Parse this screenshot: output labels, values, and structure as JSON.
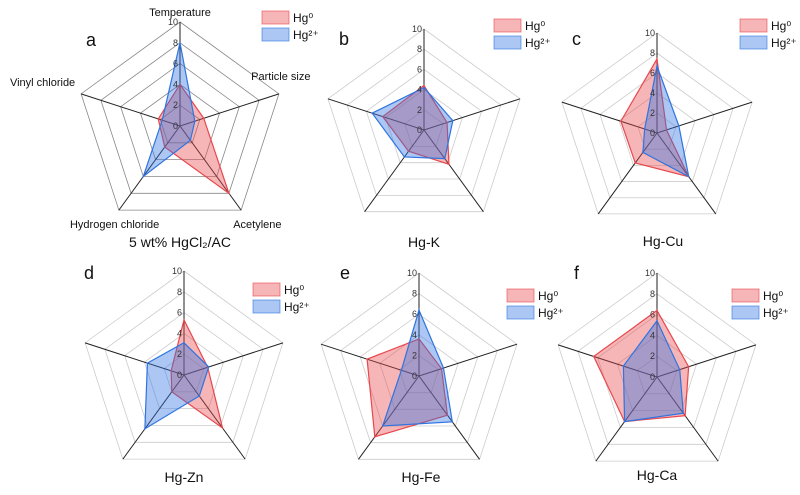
{
  "chart_data": [
    {
      "type": "radar",
      "panel": "a",
      "title": "5 wt% HgCl₂/AC",
      "axes": [
        "Temperature",
        "Particle size",
        "Acetylene",
        "Hydrogen chloride",
        "Vinyl chloride"
      ],
      "axis_labels_shown": true,
      "rlim": [
        0,
        10
      ],
      "ticks": [
        "0",
        "2",
        "4",
        "6",
        "8",
        "10"
      ],
      "legend": "top-right",
      "series": [
        {
          "name": "Hg⁰",
          "color": "#e8474c",
          "values": [
            4.0,
            2.4,
            8.0,
            2.5,
            2.2
          ]
        },
        {
          "name": "Hg²⁺",
          "color": "#2f74e0",
          "values": [
            8.0,
            1.5,
            1.7,
            6.0,
            1.8
          ]
        }
      ]
    },
    {
      "type": "radar",
      "panel": "b",
      "title": "Hg-K",
      "axes": [
        "Temperature",
        "Particle size",
        "Acetylene",
        "Hydrogen chloride",
        "Vinyl chloride"
      ],
      "axis_labels_shown": false,
      "rlim": [
        0,
        10
      ],
      "ticks": [
        "0",
        "2",
        "4",
        "6",
        "8",
        "10"
      ],
      "legend": "top-right",
      "series": [
        {
          "name": "Hg⁰",
          "color": "#e8474c",
          "values": [
            4.4,
            2.4,
            4.2,
            2.6,
            4.3
          ]
        },
        {
          "name": "Hg²⁺",
          "color": "#2f74e0",
          "values": [
            4.2,
            3.0,
            3.5,
            3.3,
            5.4
          ]
        }
      ]
    },
    {
      "type": "radar",
      "panel": "c",
      "title": "Hg-Cu",
      "axes": [
        "Temperature",
        "Particle size",
        "Acetylene",
        "Hydrogen chloride",
        "Vinyl chloride"
      ],
      "axis_labels_shown": false,
      "rlim": [
        0,
        10
      ],
      "ticks": [
        "0",
        "2",
        "4",
        "6",
        "8",
        "10"
      ],
      "legend": "top-right",
      "series": [
        {
          "name": "Hg⁰",
          "color": "#e8474c",
          "values": [
            7.4,
            1.0,
            5.4,
            3.7,
            3.8
          ]
        },
        {
          "name": "Hg²⁺",
          "color": "#2f74e0",
          "values": [
            6.7,
            2.3,
            5.4,
            2.4,
            1.3
          ]
        }
      ]
    },
    {
      "type": "radar",
      "panel": "d",
      "title": "Hg-Zn",
      "axes": [
        "Temperature",
        "Particle size",
        "Acetylene",
        "Hydrogen chloride",
        "Vinyl chloride"
      ],
      "axis_labels_shown": false,
      "rlim": [
        0,
        10
      ],
      "ticks": [
        "0",
        "2",
        "4",
        "6",
        "8",
        "10"
      ],
      "legend": "top-right",
      "series": [
        {
          "name": "Hg⁰",
          "color": "#e8474c",
          "values": [
            5.3,
            2.4,
            6.3,
            2.0,
            1.3
          ]
        },
        {
          "name": "Hg²⁺",
          "color": "#2f74e0",
          "values": [
            3.1,
            2.5,
            2.5,
            6.4,
            3.7
          ]
        }
      ]
    },
    {
      "type": "radar",
      "panel": "e",
      "title": "Hg-Fe",
      "axes": [
        "Temperature",
        "Particle size",
        "Acetylene",
        "Hydrogen chloride",
        "Vinyl chloride"
      ],
      "axis_labels_shown": false,
      "rlim": [
        0,
        10
      ],
      "ticks": [
        "0",
        "2",
        "4",
        "6",
        "8",
        "10"
      ],
      "legend": "top-right",
      "series": [
        {
          "name": "Hg⁰",
          "color": "#e8474c",
          "values": [
            3.6,
            2.3,
            4.7,
            7.3,
            5.3
          ]
        },
        {
          "name": "Hg²⁺",
          "color": "#2f74e0",
          "values": [
            6.4,
            2.5,
            5.5,
            6.0,
            1.8
          ]
        }
      ]
    },
    {
      "type": "radar",
      "panel": "f",
      "title": "Hg-Ca",
      "axes": [
        "Temperature",
        "Particle size",
        "Acetylene",
        "Hydrogen chloride",
        "Vinyl chloride"
      ],
      "axis_labels_shown": false,
      "rlim": [
        0,
        10
      ],
      "ticks": [
        "0",
        "2",
        "4",
        "6",
        "8",
        "10"
      ],
      "legend": "top-right",
      "series": [
        {
          "name": "Hg⁰",
          "color": "#e8474c",
          "values": [
            6.4,
            3.2,
            4.6,
            5.3,
            6.4
          ]
        },
        {
          "name": "Hg²⁺",
          "color": "#2f74e0",
          "values": [
            5.4,
            2.3,
            4.3,
            5.3,
            3.4
          ]
        }
      ]
    }
  ]
}
